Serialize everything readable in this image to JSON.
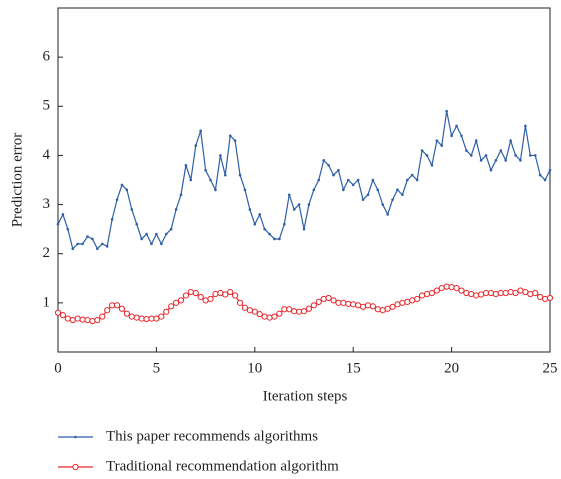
{
  "chart_data": {
    "type": "line",
    "xlabel": "Iteration steps",
    "ylabel": "Prediction error",
    "xlim": [
      0,
      25
    ],
    "ylim": [
      0,
      7
    ],
    "xticks": [
      0,
      5,
      10,
      15,
      20,
      25
    ],
    "yticks": [
      1,
      2,
      3,
      4,
      5,
      6
    ],
    "x": [
      0,
      0.25,
      0.5,
      0.75,
      1,
      1.25,
      1.5,
      1.75,
      2,
      2.25,
      2.5,
      2.75,
      3,
      3.25,
      3.5,
      3.75,
      4,
      4.25,
      4.5,
      4.75,
      5,
      5.25,
      5.5,
      5.75,
      6,
      6.25,
      6.5,
      6.75,
      7,
      7.25,
      7.5,
      7.75,
      8,
      8.25,
      8.5,
      8.75,
      9,
      9.25,
      9.5,
      9.75,
      10,
      10.25,
      10.5,
      10.75,
      11,
      11.25,
      11.5,
      11.75,
      12,
      12.25,
      12.5,
      12.75,
      13,
      13.25,
      13.5,
      13.75,
      14,
      14.25,
      14.5,
      14.75,
      15,
      15.25,
      15.5,
      15.75,
      16,
      16.25,
      16.5,
      16.75,
      17,
      17.25,
      17.5,
      17.75,
      18,
      18.25,
      18.5,
      18.75,
      19,
      19.25,
      19.5,
      19.75,
      20,
      20.25,
      20.5,
      20.75,
      21,
      21.25,
      21.5,
      21.75,
      22,
      22.25,
      22.5,
      22.75,
      23,
      23.25,
      23.5,
      23.75,
      24,
      24.25,
      24.5,
      24.75,
      25
    ],
    "series": [
      {
        "name": "This paper recommends algorithms",
        "color": "#2e5fa8",
        "marker": "dot",
        "values": [
          2.6,
          2.8,
          2.5,
          2.1,
          2.2,
          2.2,
          2.35,
          2.3,
          2.1,
          2.2,
          2.15,
          2.7,
          3.1,
          3.4,
          3.3,
          2.9,
          2.6,
          2.3,
          2.4,
          2.2,
          2.4,
          2.2,
          2.4,
          2.5,
          2.9,
          3.2,
          3.8,
          3.5,
          4.2,
          4.5,
          3.7,
          3.5,
          3.3,
          4.0,
          3.6,
          4.4,
          4.3,
          3.6,
          3.3,
          2.9,
          2.6,
          2.8,
          2.5,
          2.4,
          2.3,
          2.3,
          2.6,
          3.2,
          2.9,
          3.0,
          2.5,
          3.0,
          3.3,
          3.5,
          3.9,
          3.8,
          3.6,
          3.7,
          3.3,
          3.5,
          3.4,
          3.5,
          3.1,
          3.2,
          3.5,
          3.3,
          3.0,
          2.8,
          3.1,
          3.3,
          3.2,
          3.5,
          3.6,
          3.5,
          4.1,
          4.0,
          3.8,
          4.3,
          4.2,
          4.9,
          4.4,
          4.6,
          4.4,
          4.1,
          4.0,
          4.3,
          3.9,
          4.0,
          3.7,
          3.9,
          4.1,
          3.9,
          4.3,
          4.0,
          3.9,
          4.6,
          4.0,
          4.0,
          3.6,
          3.5,
          3.7
        ]
      },
      {
        "name": "Traditional recommendation algorithm",
        "color": "#e8262b",
        "marker": "circle",
        "values": [
          0.8,
          0.75,
          0.68,
          0.65,
          0.68,
          0.66,
          0.65,
          0.63,
          0.65,
          0.72,
          0.85,
          0.95,
          0.95,
          0.88,
          0.78,
          0.72,
          0.7,
          0.68,
          0.67,
          0.68,
          0.68,
          0.72,
          0.82,
          0.93,
          1.0,
          1.05,
          1.15,
          1.22,
          1.2,
          1.12,
          1.05,
          1.08,
          1.18,
          1.2,
          1.17,
          1.22,
          1.15,
          1.0,
          0.9,
          0.85,
          0.82,
          0.77,
          0.72,
          0.7,
          0.72,
          0.78,
          0.87,
          0.87,
          0.83,
          0.82,
          0.83,
          0.88,
          0.95,
          1.02,
          1.08,
          1.1,
          1.05,
          1.0,
          1.0,
          0.98,
          0.97,
          0.95,
          0.92,
          0.95,
          0.93,
          0.87,
          0.85,
          0.88,
          0.92,
          0.97,
          1.0,
          1.02,
          1.05,
          1.08,
          1.15,
          1.18,
          1.2,
          1.25,
          1.3,
          1.33,
          1.32,
          1.3,
          1.25,
          1.2,
          1.18,
          1.15,
          1.17,
          1.2,
          1.2,
          1.18,
          1.2,
          1.2,
          1.22,
          1.2,
          1.25,
          1.22,
          1.18,
          1.2,
          1.12,
          1.08,
          1.1
        ]
      }
    ]
  }
}
